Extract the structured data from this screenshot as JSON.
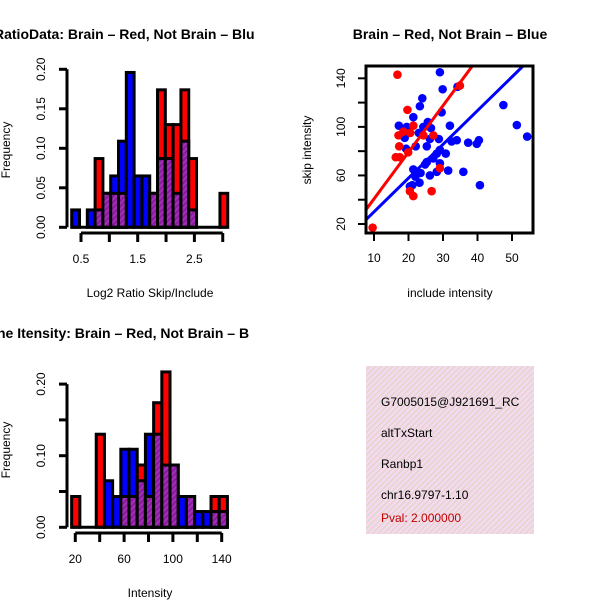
{
  "colors": {
    "red": "#ff0000",
    "blue": "#0000ff",
    "overlap": "#8b1a9b",
    "pval": "#c00000",
    "box": "#f8d8f0"
  },
  "chart_data": [
    {
      "type": "bar",
      "title": "RatioData: Brain – Red, Not Brain – Blu",
      "xlabel": "Log2 Ratio Skip/Include",
      "ylabel": "Frequency",
      "x_ticks": [
        0.5,
        1.0,
        1.5,
        2.0,
        2.5,
        3.0
      ],
      "x_tick_labels": [
        "0.5",
        "1.5",
        "2.5"
      ],
      "y_ticks": [
        0,
        0.05,
        0.1,
        0.15,
        0.2
      ],
      "y_tick_labels": [
        "0.00",
        "0.05",
        "0.10",
        "0.15",
        "0.20"
      ],
      "ylim": [
        0,
        0.2
      ],
      "bin_start": 0.336,
      "bin_width": 0.1376,
      "series": [
        {
          "name": "Brain",
          "color": "red",
          "values": [
            0,
            0,
            0,
            0.087,
            0.043,
            0.043,
            0.043,
            0,
            0,
            0,
            0.043,
            0.174,
            0.13,
            0.13,
            0.174,
            0.087,
            0,
            0,
            0,
            0.043
          ]
        },
        {
          "name": "Not Brain",
          "color": "blue",
          "values": [
            0.022,
            0,
            0.022,
            0.022,
            0.043,
            0.065,
            0.109,
            0.196,
            0.065,
            0.065,
            0.043,
            0.087,
            0.087,
            0.043,
            0.109,
            0.022,
            0,
            0,
            0,
            0
          ]
        }
      ]
    },
    {
      "type": "scatter",
      "title": "Brain – Red, Not Brain – Blue",
      "xlabel": "include intensity",
      "ylabel": "skip intensity",
      "x_ticks": [
        10,
        20,
        30,
        40,
        50
      ],
      "x_tick_labels": [
        "10",
        "20",
        "30",
        "40",
        "50"
      ],
      "y_ticks": [
        20,
        40,
        60,
        80,
        100,
        120,
        140
      ],
      "y_tick_labels": [
        "20",
        "60",
        "100",
        "140"
      ],
      "xlim": [
        7.6,
        56.1
      ],
      "ylim": [
        12.6,
        150.1
      ],
      "series": [
        {
          "name": "Brain",
          "color": "red",
          "points": [
            [
              16.8,
              143
            ],
            [
              9.6,
              17
            ],
            [
              19.7,
              114
            ],
            [
              21.4,
              101
            ],
            [
              17.1,
              93
            ],
            [
              17.3,
              84
            ],
            [
              16.3,
              75
            ],
            [
              17.5,
              75
            ],
            [
              19.9,
              79
            ],
            [
              20.4,
              47
            ],
            [
              21.4,
              43
            ],
            [
              26.7,
              47
            ],
            [
              24.3,
              93
            ],
            [
              27.2,
              93
            ],
            [
              34.9,
              134
            ],
            [
              29.1,
              66
            ],
            [
              18.5,
              96
            ],
            [
              20.5,
              95
            ]
          ],
          "fit": {
            "slope": 3.84,
            "intercept": 2.3
          }
        },
        {
          "name": "Not Brain",
          "color": "blue",
          "points": [
            [
              29.1,
              145
            ],
            [
              29.9,
              131
            ],
            [
              34.2,
              133
            ],
            [
              24,
              123.5
            ],
            [
              23.3,
              117
            ],
            [
              29.6,
              112
            ],
            [
              21.4,
              108
            ],
            [
              17.2,
              101
            ],
            [
              19.5,
              100
            ],
            [
              25.6,
              104
            ],
            [
              24.3,
              100
            ],
            [
              26.5,
              99
            ],
            [
              23,
              95
            ],
            [
              18.9,
              91
            ],
            [
              25.3,
              84
            ],
            [
              22.1,
              84
            ],
            [
              19.3,
              82
            ],
            [
              26.2,
              90
            ],
            [
              28.8,
              90
            ],
            [
              32,
              101
            ],
            [
              34,
              89
            ],
            [
              32.5,
              88
            ],
            [
              37.3,
              87
            ],
            [
              39.8,
              86
            ],
            [
              40.4,
              89
            ],
            [
              47.5,
              118
            ],
            [
              51.4,
              101.5
            ],
            [
              54.4,
              92
            ],
            [
              40.7,
              52
            ],
            [
              35.9,
              63
            ],
            [
              31.5,
              64
            ],
            [
              28.2,
              78
            ],
            [
              29.1,
              81
            ],
            [
              30.8,
              78
            ],
            [
              27.2,
              74
            ],
            [
              25.3,
              71
            ],
            [
              24.8,
              69
            ],
            [
              29.1,
              70
            ],
            [
              26.2,
              60
            ],
            [
              28.2,
              63
            ],
            [
              21.4,
              65
            ],
            [
              23.5,
              62
            ],
            [
              22,
              59
            ],
            [
              23.2,
              54
            ],
            [
              21.1,
              52
            ],
            [
              20.4,
              51
            ]
          ],
          "fit": {
            "slope": 2.78,
            "intercept": 2.2
          }
        }
      ]
    },
    {
      "type": "bar",
      "title": "ne Itensity: Brain – Red, Not Brain – B",
      "xlabel": "Intensity",
      "ylabel": "Frequency",
      "x_ticks": [
        20,
        40,
        60,
        80,
        100,
        120,
        140
      ],
      "x_tick_labels": [
        "20",
        "60",
        "100",
        "140"
      ],
      "y_ticks": [
        0,
        0.05,
        0.1,
        0.15,
        0.2
      ],
      "y_tick_labels": [
        "0.00",
        "0.10",
        "0.20"
      ],
      "ylim": [
        0,
        0.2
      ],
      "bin_start": 17,
      "bin_width": 6.72,
      "series": [
        {
          "name": "Brain",
          "color": "red",
          "values": [
            0.043,
            0,
            0,
            0.13,
            0,
            0,
            0.043,
            0.043,
            0.087,
            0.043,
            0.174,
            0.217,
            0.087,
            0,
            0.043,
            0,
            0,
            0.043,
            0.043
          ]
        },
        {
          "name": "Not Brain",
          "color": "blue",
          "values": [
            0,
            0,
            0,
            0,
            0.065,
            0.043,
            0.109,
            0.109,
            0.065,
            0.13,
            0.13,
            0.087,
            0.087,
            0.043,
            0.043,
            0.022,
            0.022,
            0.022,
            0.022
          ]
        }
      ]
    }
  ],
  "info": {
    "id": "G7005015@J921691_RC",
    "event_type": "altTxStart",
    "gene": "Ranbp1",
    "location": "chr16.9797-1.10",
    "pval": "Pval: 2.000000"
  }
}
